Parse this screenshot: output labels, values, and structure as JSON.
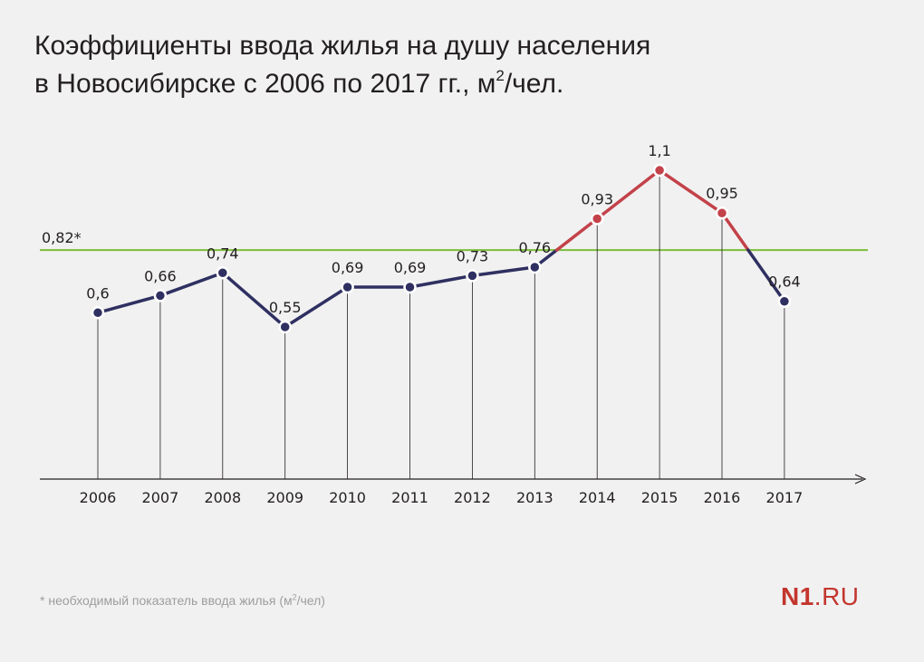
{
  "title": {
    "line1": "Коэффициенты ввода жилья на душу населения",
    "line2_before_sup": "в Новосибирске с 2006 по 2017 гг., м",
    "sup": "2",
    "line2_after_sup": "/чел."
  },
  "chart_data": {
    "type": "line",
    "title": "Коэффициенты ввода жилья на душу населения в Новосибирске с 2006 по 2017 гг., м²/чел.",
    "xlabel": "",
    "ylabel": "",
    "categories": [
      "2006",
      "2007",
      "2008",
      "2009",
      "2010",
      "2011",
      "2012",
      "2013",
      "2014",
      "2015",
      "2016",
      "2017"
    ],
    "series": [
      {
        "name": "Коэффициент ввода жилья",
        "values": [
          0.6,
          0.66,
          0.74,
          0.55,
          0.69,
          0.69,
          0.73,
          0.76,
          0.93,
          1.1,
          0.95,
          0.64
        ],
        "labels": [
          "0,6",
          "0,66",
          "0,74",
          "0,55",
          "0,69",
          "0,69",
          "0,73",
          "0,76",
          "0,93",
          "1,1",
          "0,95",
          "0,64"
        ]
      }
    ],
    "reference_line": {
      "value": 0.82,
      "label": "0,82*"
    },
    "ylim": [
      0,
      1.1
    ],
    "grid": false,
    "colors": {
      "below": "#2f3061",
      "above": "#c3424a",
      "reference": "#7cbd3a",
      "axis": "#231f20",
      "drop_lines": "#231f20"
    }
  },
  "footnote": {
    "before_sup": "* необходимый показатель ввода жилья (м",
    "sup": "2",
    "after_sup": "/чел)"
  },
  "logo": {
    "bold": "N1",
    "rest": ".RU"
  }
}
